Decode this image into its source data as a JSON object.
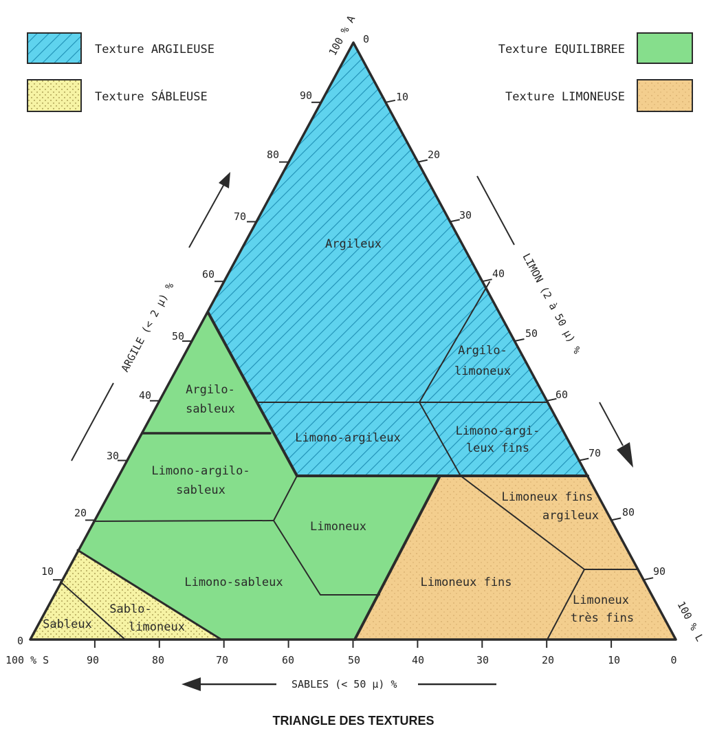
{
  "figure": {
    "title": "TRIANGLE DES TEXTURES",
    "colors": {
      "argileuse": "#5fd3ee",
      "equilibree": "#86de8c",
      "sableuse": "#f6f3a4",
      "limoneuse": "#f3ce8e",
      "line": "#2b2b2b"
    }
  },
  "legend": {
    "argileuse": "Texture ARGILEUSE",
    "sableuse": "Texture SÁBLEUSE",
    "equilibree": "Texture EQUILIBREE",
    "limoneuse": "Texture LIMONEUSE"
  },
  "axes": {
    "argile": {
      "title": "ARGILE (< 2 µ) %",
      "ticks": [
        "0",
        "10",
        "20",
        "30",
        "40",
        "50",
        "60",
        "70",
        "80",
        "90"
      ],
      "apex_label": "100 % A"
    },
    "limon": {
      "title": "LIMON (2 à 50 µ) %",
      "ticks": [
        "0",
        "10",
        "20",
        "30",
        "40",
        "50",
        "60",
        "70",
        "80",
        "90"
      ],
      "apex_label": "100 % L"
    },
    "sables": {
      "title": "SABLES (< 50 µ) %",
      "ticks": [
        "0",
        "10",
        "20",
        "30",
        "40",
        "50",
        "60",
        "70",
        "80",
        "90"
      ],
      "apex_label": "100 % S"
    }
  },
  "regions": {
    "argileux": "Argileux",
    "argilo_limoneux_1": "Argilo-",
    "argilo_limoneux_2": "limoneux",
    "argilo_sableux_1": "Argilo-",
    "argilo_sableux_2": "sableux",
    "limono_argileux": "Limono-argileux",
    "limono_argileux_fins_1": "Limono-argi-",
    "limono_argileux_fins_2": "leux fins",
    "limono_argilo_sableux_1": "Limono-argilo-",
    "limono_argilo_sableux_2": "sableux",
    "limoneux": "Limoneux",
    "limoneux_fins_argileux_1": "Limoneux fins",
    "limoneux_fins_argileux_2": "argileux",
    "limono_sableux": "Limono-sableux",
    "limoneux_fins": "Limoneux fins",
    "limoneux_tres_fins_1": "Limoneux",
    "limoneux_tres_fins_2": "très fins",
    "sableux": "Sableux",
    "sablo_limoneux_1": "Sablo-",
    "sablo_limoneux_2": "limoneux"
  }
}
